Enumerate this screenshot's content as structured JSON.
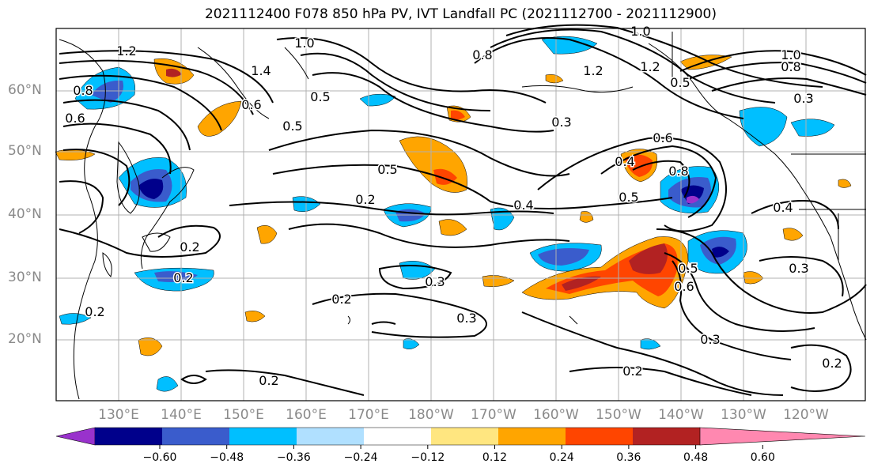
{
  "title": "2021112400 F078 850 hPa PV, IVT Landfall PC (2021112700 - 2021112900)",
  "lat_labels": [
    "60°N",
    "50°N",
    "40°N",
    "30°N",
    "20°N"
  ],
  "lon_labels": [
    "130°E",
    "140°E",
    "150°E",
    "160°E",
    "170°E",
    "180°W",
    "170°W",
    "160°W",
    "150°W",
    "140°W",
    "130°W",
    "120°W"
  ],
  "colorbar": {
    "ticks": [
      "−0.60",
      "−0.48",
      "−0.36",
      "−0.24",
      "−0.12",
      "0.12",
      "0.24",
      "0.36",
      "0.48",
      "0.60"
    ],
    "colors": [
      "#9932cc",
      "#00008b",
      "#3a5ccc",
      "#00bfff",
      "#b0e0ff",
      "#ffffff",
      "#ffe680",
      "#ffa500",
      "#ff4500",
      "#b22222",
      "#ff88b0"
    ]
  },
  "contour_labels": [
    "1.2",
    "1.0",
    "1.4",
    "0.8",
    "0.6",
    "0.5",
    "0.8",
    "1.0",
    "1.2",
    "1.0",
    "1.2",
    "0.5",
    "0.8",
    "0.3",
    "0.3",
    "0.6",
    "0.4",
    "0.5",
    "0.5",
    "0.2",
    "0.4",
    "0.8",
    "0.6",
    "0.5",
    "0.4",
    "0.2",
    "0.2",
    "0.3",
    "0.2",
    "0.6",
    "0.5",
    "0.3",
    "0.2",
    "0.3",
    "0.3",
    "0.2",
    "0.2",
    "0.2"
  ],
  "colors": {
    "frame": "#000000",
    "grid": "#b0b0b0",
    "coast": "#000000",
    "contour": "#000000"
  }
}
